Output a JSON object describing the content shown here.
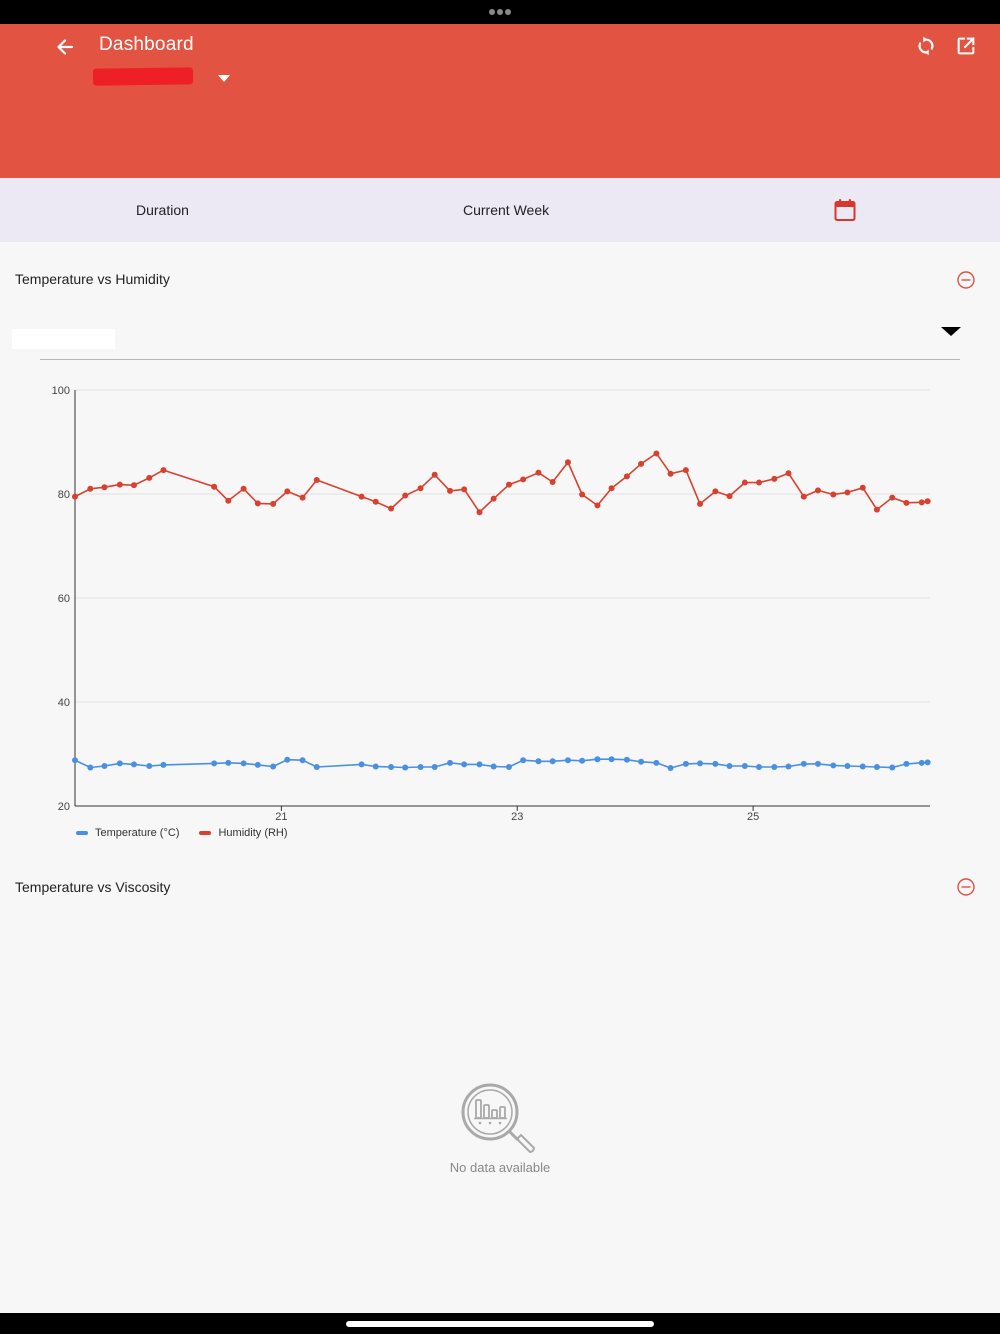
{
  "header": {
    "title": "Dashboard",
    "background_color": "#e35342",
    "icons": [
      "back-arrow-icon",
      "refresh-icon",
      "open-external-icon",
      "chevron-down-icon"
    ]
  },
  "duration": {
    "label": "Duration",
    "value": "Current Week",
    "icon": "calendar-icon",
    "accent_color": "#d8372b"
  },
  "sections": [
    {
      "title": "Temperature vs Humidity",
      "icon": "collapse-minus-icon"
    },
    {
      "title": "Temperature vs Viscosity",
      "icon": "collapse-minus-icon"
    }
  ],
  "empty_state": {
    "icon": "search-chart-icon",
    "text": "No data available"
  },
  "chart_data": {
    "type": "line",
    "title": "",
    "xlabel": "",
    "ylabel": "",
    "xlim": [
      19.25,
      26.5
    ],
    "ylim": [
      20,
      100
    ],
    "y_ticks": [
      "20",
      "40",
      "60",
      "80",
      "100"
    ],
    "x_ticks": [
      {
        "value": 21,
        "label": "21"
      },
      {
        "value": 23,
        "label": "23"
      },
      {
        "value": 25,
        "label": "25"
      }
    ],
    "grid": true,
    "legend_position": "bottom-left",
    "series": [
      {
        "name": "Temperature (°C)",
        "color": "#4a90e2",
        "x": [
          19.25,
          19.38,
          19.5,
          19.63,
          19.75,
          19.88,
          20.0,
          20.43,
          20.55,
          20.68,
          20.8,
          20.93,
          21.05,
          21.18,
          21.3,
          21.68,
          21.8,
          21.93,
          22.05,
          22.18,
          22.3,
          22.43,
          22.55,
          22.68,
          22.8,
          22.93,
          23.05,
          23.18,
          23.3,
          23.43,
          23.55,
          23.68,
          23.8,
          23.93,
          24.05,
          24.18,
          24.3,
          24.43,
          24.55,
          24.68,
          24.8,
          24.93,
          25.05,
          25.18,
          25.3,
          25.43,
          25.55,
          25.68,
          25.8,
          25.93,
          26.05,
          26.18,
          26.3,
          26.43,
          26.48
        ],
        "values": [
          28.8,
          27.4,
          27.7,
          28.2,
          28.0,
          27.7,
          27.9,
          28.2,
          28.3,
          28.2,
          27.9,
          27.6,
          28.9,
          28.8,
          27.5,
          28.0,
          27.6,
          27.5,
          27.4,
          27.5,
          27.5,
          28.3,
          28.0,
          28.0,
          27.6,
          27.5,
          28.8,
          28.6,
          28.6,
          28.8,
          28.7,
          29.0,
          29.0,
          28.9,
          28.5,
          28.3,
          27.3,
          28.1,
          28.2,
          28.1,
          27.7,
          27.7,
          27.5,
          27.5,
          27.6,
          28.1,
          28.1,
          27.8,
          27.7,
          27.6,
          27.5,
          27.4,
          28.1,
          28.3,
          28.4
        ]
      },
      {
        "name": "Humidity (RH)",
        "color": "#d8412f",
        "x": [
          19.25,
          19.38,
          19.5,
          19.63,
          19.75,
          19.88,
          20.0,
          20.43,
          20.55,
          20.68,
          20.8,
          20.93,
          21.05,
          21.18,
          21.3,
          21.68,
          21.8,
          21.93,
          22.05,
          22.18,
          22.3,
          22.43,
          22.55,
          22.68,
          22.8,
          22.93,
          23.05,
          23.18,
          23.3,
          23.43,
          23.55,
          23.68,
          23.8,
          23.93,
          24.05,
          24.18,
          24.3,
          24.43,
          24.55,
          24.68,
          24.8,
          24.93,
          25.05,
          25.18,
          25.3,
          25.43,
          25.55,
          25.68,
          25.8,
          25.93,
          26.05,
          26.18,
          26.3,
          26.43,
          26.48
        ],
        "values": [
          79.5,
          81.0,
          81.3,
          81.8,
          81.7,
          83.1,
          84.6,
          81.4,
          78.7,
          81.0,
          78.2,
          78.1,
          80.5,
          79.3,
          82.7,
          79.5,
          78.5,
          77.2,
          79.7,
          81.1,
          83.7,
          80.6,
          80.9,
          76.5,
          79.1,
          81.8,
          82.8,
          84.1,
          82.3,
          86.1,
          79.9,
          77.8,
          81.1,
          83.4,
          85.8,
          87.8,
          83.9,
          84.6,
          78.1,
          80.5,
          79.6,
          82.2,
          82.2,
          82.9,
          84.0,
          79.5,
          80.7,
          79.9,
          80.3,
          81.2,
          77.0,
          79.3,
          78.3,
          78.4,
          78.6
        ]
      }
    ]
  }
}
